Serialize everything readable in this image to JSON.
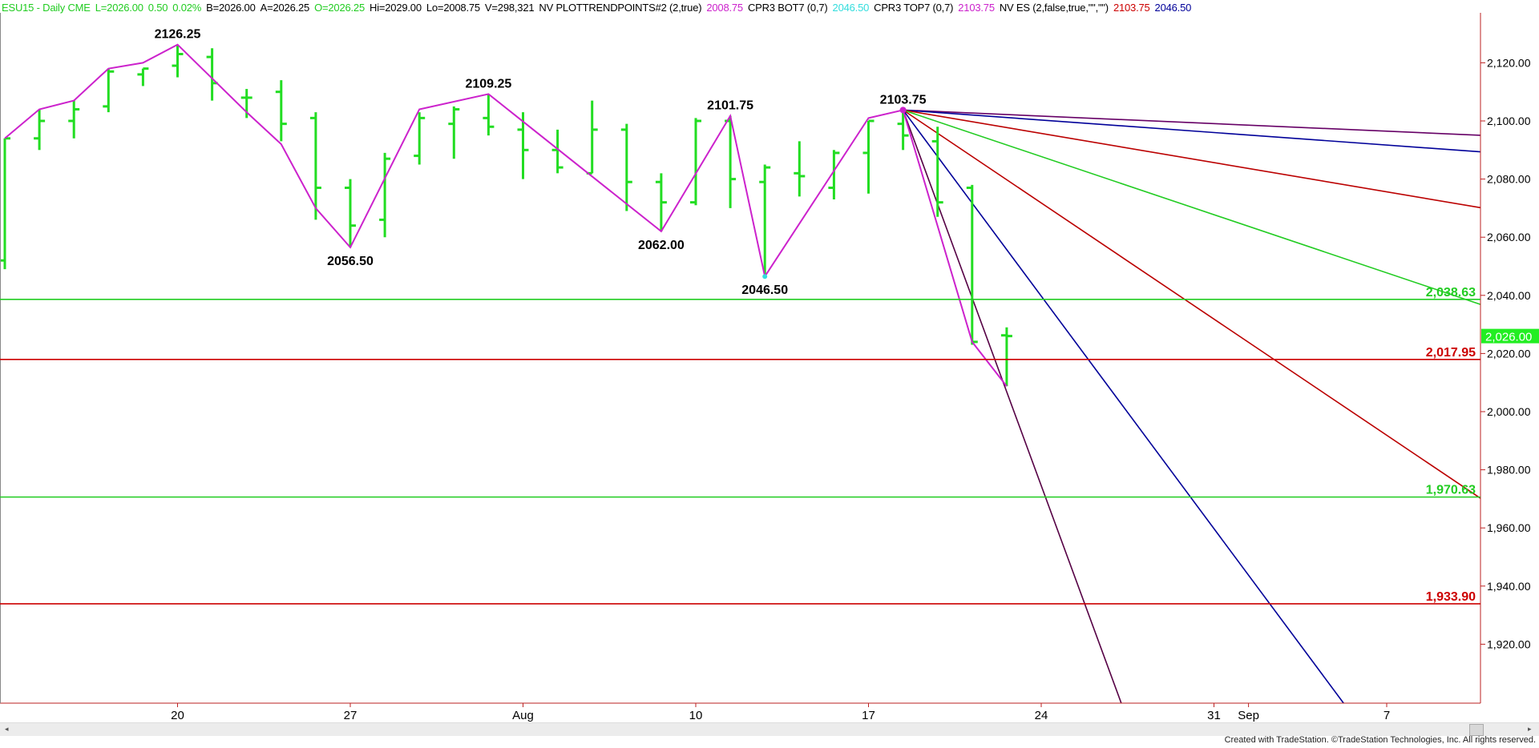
{
  "header": {
    "items": [
      {
        "text": "ESU15 - Daily  CME",
        "color": "#22cc22"
      },
      {
        "text": "L=2026.00",
        "color": "#22cc22"
      },
      {
        "text": "0.50",
        "color": "#22cc22"
      },
      {
        "text": "0.02%",
        "color": "#22cc22"
      },
      {
        "text": "B=2026.00",
        "color": "#000000"
      },
      {
        "text": "A=2026.25",
        "color": "#000000"
      },
      {
        "text": "O=2026.25",
        "color": "#22cc22"
      },
      {
        "text": "Hi=2029.00",
        "color": "#000000"
      },
      {
        "text": "Lo=2008.75",
        "color": "#000000"
      },
      {
        "text": "V=298,321",
        "color": "#000000"
      },
      {
        "text": "NV  PLOTTRENDPOINTS#2 (2,true)",
        "color": "#000000"
      },
      {
        "text": "2008.75",
        "color": "#cc22cc"
      },
      {
        "text": "CPR3 BOT7 (0,7)",
        "color": "#000000"
      },
      {
        "text": "2046.50",
        "color": "#33dddd"
      },
      {
        "text": "CPR3 TOP7 (0,7)",
        "color": "#000000"
      },
      {
        "text": "2103.75",
        "color": "#cc22cc"
      },
      {
        "text": "NV ES (2,false,true,\"\",\"\")",
        "color": "#000000"
      },
      {
        "text": "2103.75",
        "color": "#cc0000"
      },
      {
        "text": "2046.50",
        "color": "#000099"
      }
    ]
  },
  "chart_data": {
    "type": "ohlc-bar",
    "ylim": [
      1900,
      2138
    ],
    "y_ticks": [
      "2,120.00",
      "2,100.00",
      "2,080.00",
      "2,060.00",
      "2,040.00",
      "2,020.00",
      "2,000.00",
      "1,980.00",
      "1,960.00",
      "1,940.00",
      "1,920.00"
    ],
    "y_tick_values": [
      2120,
      2100,
      2080,
      2060,
      2040,
      2020,
      2000,
      1980,
      1960,
      1940,
      1920
    ],
    "x_labels": [
      {
        "label": "20",
        "bar": 5
      },
      {
        "label": "27",
        "bar": 10
      },
      {
        "label": "Aug",
        "bar": 15
      },
      {
        "label": "10",
        "bar": 20
      },
      {
        "label": "17",
        "bar": 25
      },
      {
        "label": "24",
        "bar": 30
      },
      {
        "label": "31",
        "bar": 35
      },
      {
        "label": "Sep",
        "bar": 36
      },
      {
        "label": "7",
        "bar": 40
      }
    ],
    "bar_color": "#22dd22",
    "bars": [
      {
        "date": "Jul 13",
        "o": 2052,
        "h": 2094,
        "l": 2049,
        "c": 2094
      },
      {
        "date": "Jul 14",
        "o": 2094,
        "h": 2104,
        "l": 2090,
        "c": 2100
      },
      {
        "date": "Jul 15",
        "o": 2100,
        "h": 2107,
        "l": 2094,
        "c": 2104
      },
      {
        "date": "Jul 16",
        "o": 2105,
        "h": 2118,
        "l": 2103,
        "c": 2117
      },
      {
        "date": "Jul 17",
        "o": 2116,
        "h": 2118,
        "l": 2112,
        "c": 2118
      },
      {
        "date": "Jul 20",
        "o": 2119,
        "h": 2126.25,
        "l": 2115,
        "c": 2123
      },
      {
        "date": "Jul 21",
        "o": 2122,
        "h": 2125,
        "l": 2107,
        "c": 2113
      },
      {
        "date": "Jul 22",
        "o": 2108,
        "h": 2111,
        "l": 2101,
        "c": 2108
      },
      {
        "date": "Jul 23",
        "o": 2110,
        "h": 2114,
        "l": 2093,
        "c": 2099
      },
      {
        "date": "Jul 24",
        "o": 2101,
        "h": 2103,
        "l": 2066,
        "c": 2077
      },
      {
        "date": "Jul 27",
        "o": 2077,
        "h": 2080,
        "l": 2056.5,
        "c": 2064
      },
      {
        "date": "Jul 28",
        "o": 2066,
        "h": 2089,
        "l": 2060,
        "c": 2087
      },
      {
        "date": "Jul 29",
        "o": 2088,
        "h": 2103,
        "l": 2085,
        "c": 2101
      },
      {
        "date": "Jul 30",
        "o": 2099,
        "h": 2105,
        "l": 2087,
        "c": 2104
      },
      {
        "date": "Jul 31",
        "o": 2101,
        "h": 2109.25,
        "l": 2095,
        "c": 2098
      },
      {
        "date": "Aug 3",
        "o": 2097,
        "h": 2103,
        "l": 2080,
        "c": 2090
      },
      {
        "date": "Aug 4",
        "o": 2090,
        "h": 2097,
        "l": 2082,
        "c": 2084
      },
      {
        "date": "Aug 5",
        "o": 2082,
        "h": 2107,
        "l": 2082,
        "c": 2097
      },
      {
        "date": "Aug 6",
        "o": 2097,
        "h": 2099,
        "l": 2069,
        "c": 2079
      },
      {
        "date": "Aug 7",
        "o": 2079,
        "h": 2082,
        "l": 2062,
        "c": 2072
      },
      {
        "date": "Aug 10",
        "o": 2072,
        "h": 2101,
        "l": 2071,
        "c": 2100
      },
      {
        "date": "Aug 11",
        "o": 2100,
        "h": 2101.75,
        "l": 2070,
        "c": 2080
      },
      {
        "date": "Aug 12",
        "o": 2079,
        "h": 2085,
        "l": 2046.5,
        "c": 2084
      },
      {
        "date": "Aug 13",
        "o": 2082,
        "h": 2093,
        "l": 2074,
        "c": 2081
      },
      {
        "date": "Aug 14",
        "o": 2077,
        "h": 2090,
        "l": 2073,
        "c": 2089
      },
      {
        "date": "Aug 17",
        "o": 2089,
        "h": 2100,
        "l": 2075,
        "c": 2100
      },
      {
        "date": "Aug 18",
        "o": 2099,
        "h": 2103.75,
        "l": 2090,
        "c": 2095
      },
      {
        "date": "Aug 19",
        "o": 2093,
        "h": 2098,
        "l": 2067,
        "c": 2072
      },
      {
        "date": "Aug 20",
        "o": 2077,
        "h": 2078,
        "l": 2023,
        "c": 2024
      },
      {
        "date": "Aug 21",
        "o": 2026.25,
        "h": 2029,
        "l": 2008.75,
        "c": 2026
      }
    ],
    "zigzag": {
      "color": "#cc22cc",
      "points": [
        [
          0,
          2094
        ],
        [
          1,
          2104
        ],
        [
          2,
          2107
        ],
        [
          3,
          2118
        ],
        [
          4,
          2120
        ],
        [
          5,
          2126.25
        ],
        [
          7,
          2103
        ],
        [
          8,
          2092
        ],
        [
          9,
          2070
        ],
        [
          10,
          2056.5
        ],
        [
          12,
          2104
        ],
        [
          14,
          2109.25
        ],
        [
          19,
          2062
        ],
        [
          21,
          2101.75
        ],
        [
          22,
          2046.5
        ],
        [
          25,
          2101
        ],
        [
          26,
          2103.75
        ],
        [
          28,
          2024
        ],
        [
          29,
          2008.75
        ]
      ]
    },
    "pivot_labels": [
      {
        "text": "2126.25",
        "bar": 5,
        "price": 2126.25,
        "pos": "above"
      },
      {
        "text": "2056.50",
        "bar": 10,
        "price": 2056.5,
        "pos": "below"
      },
      {
        "text": "2109.25",
        "bar": 14,
        "price": 2109.25,
        "pos": "above"
      },
      {
        "text": "2062.00",
        "bar": 19,
        "price": 2062,
        "pos": "below"
      },
      {
        "text": "2101.75",
        "bar": 21,
        "price": 2101.75,
        "pos": "above"
      },
      {
        "text": "2046.50",
        "bar": 22,
        "price": 2046.5,
        "pos": "below"
      },
      {
        "text": "2103.75",
        "bar": 26,
        "price": 2103.75,
        "pos": "above"
      }
    ],
    "fan_origin": {
      "bar": 26,
      "price": 2103.75
    },
    "fan_lines": [
      {
        "color": "#660066",
        "slope": -0.52
      },
      {
        "color": "#000099",
        "slope": -0.86
      },
      {
        "color": "#bb0000",
        "slope": -2.01
      },
      {
        "color": "#22cc22",
        "slope": -4.0
      },
      {
        "color": "#bb0000",
        "slope": -7.99
      },
      {
        "color": "#000099",
        "slope": -16.0
      },
      {
        "color": "#550044",
        "slope": -32.3
      }
    ],
    "levels": [
      {
        "price": 2038.63,
        "label": "2,038.63",
        "color": "#22cc22"
      },
      {
        "price": 2017.95,
        "label": "2,017.95",
        "color": "#cc0000"
      },
      {
        "price": 1970.63,
        "label": "1,970.63",
        "color": "#22cc22"
      },
      {
        "price": 1933.9,
        "label": "1,933.90",
        "color": "#cc0000"
      }
    ],
    "last_price": {
      "price": 2026.0,
      "label": "2,026.00",
      "color": "#22ee22"
    }
  },
  "footer": "Created with TradeStation. ©TradeStation Technologies, Inc. All rights reserved."
}
